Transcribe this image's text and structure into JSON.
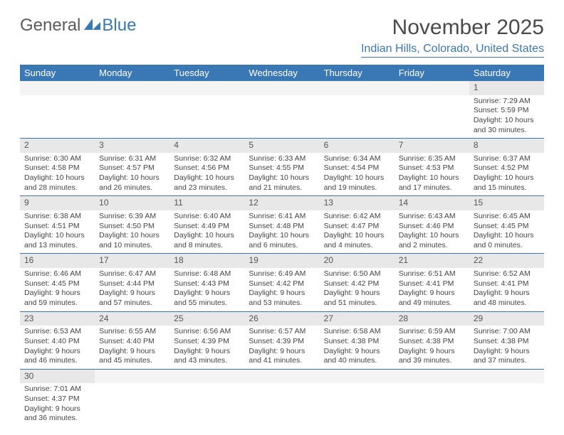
{
  "logo": {
    "text1": "General",
    "text2": "Blue"
  },
  "title": "November 2025",
  "location": "Indian Hills, Colorado, United States",
  "weekdays": [
    "Sunday",
    "Monday",
    "Tuesday",
    "Wednesday",
    "Thursday",
    "Friday",
    "Saturday"
  ],
  "colors": {
    "header_bg": "#3a78b5",
    "daynum_bg": "#e8e8e8"
  },
  "weeks": [
    [
      {
        "n": "",
        "sr": "",
        "ss": "",
        "dl": ""
      },
      {
        "n": "",
        "sr": "",
        "ss": "",
        "dl": ""
      },
      {
        "n": "",
        "sr": "",
        "ss": "",
        "dl": ""
      },
      {
        "n": "",
        "sr": "",
        "ss": "",
        "dl": ""
      },
      {
        "n": "",
        "sr": "",
        "ss": "",
        "dl": ""
      },
      {
        "n": "",
        "sr": "",
        "ss": "",
        "dl": ""
      },
      {
        "n": "1",
        "sr": "Sunrise: 7:29 AM",
        "ss": "Sunset: 5:59 PM",
        "dl": "Daylight: 10 hours and 30 minutes."
      }
    ],
    [
      {
        "n": "2",
        "sr": "Sunrise: 6:30 AM",
        "ss": "Sunset: 4:58 PM",
        "dl": "Daylight: 10 hours and 28 minutes."
      },
      {
        "n": "3",
        "sr": "Sunrise: 6:31 AM",
        "ss": "Sunset: 4:57 PM",
        "dl": "Daylight: 10 hours and 26 minutes."
      },
      {
        "n": "4",
        "sr": "Sunrise: 6:32 AM",
        "ss": "Sunset: 4:56 PM",
        "dl": "Daylight: 10 hours and 23 minutes."
      },
      {
        "n": "5",
        "sr": "Sunrise: 6:33 AM",
        "ss": "Sunset: 4:55 PM",
        "dl": "Daylight: 10 hours and 21 minutes."
      },
      {
        "n": "6",
        "sr": "Sunrise: 6:34 AM",
        "ss": "Sunset: 4:54 PM",
        "dl": "Daylight: 10 hours and 19 minutes."
      },
      {
        "n": "7",
        "sr": "Sunrise: 6:35 AM",
        "ss": "Sunset: 4:53 PM",
        "dl": "Daylight: 10 hours and 17 minutes."
      },
      {
        "n": "8",
        "sr": "Sunrise: 6:37 AM",
        "ss": "Sunset: 4:52 PM",
        "dl": "Daylight: 10 hours and 15 minutes."
      }
    ],
    [
      {
        "n": "9",
        "sr": "Sunrise: 6:38 AM",
        "ss": "Sunset: 4:51 PM",
        "dl": "Daylight: 10 hours and 13 minutes."
      },
      {
        "n": "10",
        "sr": "Sunrise: 6:39 AM",
        "ss": "Sunset: 4:50 PM",
        "dl": "Daylight: 10 hours and 10 minutes."
      },
      {
        "n": "11",
        "sr": "Sunrise: 6:40 AM",
        "ss": "Sunset: 4:49 PM",
        "dl": "Daylight: 10 hours and 8 minutes."
      },
      {
        "n": "12",
        "sr": "Sunrise: 6:41 AM",
        "ss": "Sunset: 4:48 PM",
        "dl": "Daylight: 10 hours and 6 minutes."
      },
      {
        "n": "13",
        "sr": "Sunrise: 6:42 AM",
        "ss": "Sunset: 4:47 PM",
        "dl": "Daylight: 10 hours and 4 minutes."
      },
      {
        "n": "14",
        "sr": "Sunrise: 6:43 AM",
        "ss": "Sunset: 4:46 PM",
        "dl": "Daylight: 10 hours and 2 minutes."
      },
      {
        "n": "15",
        "sr": "Sunrise: 6:45 AM",
        "ss": "Sunset: 4:45 PM",
        "dl": "Daylight: 10 hours and 0 minutes."
      }
    ],
    [
      {
        "n": "16",
        "sr": "Sunrise: 6:46 AM",
        "ss": "Sunset: 4:45 PM",
        "dl": "Daylight: 9 hours and 59 minutes."
      },
      {
        "n": "17",
        "sr": "Sunrise: 6:47 AM",
        "ss": "Sunset: 4:44 PM",
        "dl": "Daylight: 9 hours and 57 minutes."
      },
      {
        "n": "18",
        "sr": "Sunrise: 6:48 AM",
        "ss": "Sunset: 4:43 PM",
        "dl": "Daylight: 9 hours and 55 minutes."
      },
      {
        "n": "19",
        "sr": "Sunrise: 6:49 AM",
        "ss": "Sunset: 4:42 PM",
        "dl": "Daylight: 9 hours and 53 minutes."
      },
      {
        "n": "20",
        "sr": "Sunrise: 6:50 AM",
        "ss": "Sunset: 4:42 PM",
        "dl": "Daylight: 9 hours and 51 minutes."
      },
      {
        "n": "21",
        "sr": "Sunrise: 6:51 AM",
        "ss": "Sunset: 4:41 PM",
        "dl": "Daylight: 9 hours and 49 minutes."
      },
      {
        "n": "22",
        "sr": "Sunrise: 6:52 AM",
        "ss": "Sunset: 4:41 PM",
        "dl": "Daylight: 9 hours and 48 minutes."
      }
    ],
    [
      {
        "n": "23",
        "sr": "Sunrise: 6:53 AM",
        "ss": "Sunset: 4:40 PM",
        "dl": "Daylight: 9 hours and 46 minutes."
      },
      {
        "n": "24",
        "sr": "Sunrise: 6:55 AM",
        "ss": "Sunset: 4:40 PM",
        "dl": "Daylight: 9 hours and 45 minutes."
      },
      {
        "n": "25",
        "sr": "Sunrise: 6:56 AM",
        "ss": "Sunset: 4:39 PM",
        "dl": "Daylight: 9 hours and 43 minutes."
      },
      {
        "n": "26",
        "sr": "Sunrise: 6:57 AM",
        "ss": "Sunset: 4:39 PM",
        "dl": "Daylight: 9 hours and 41 minutes."
      },
      {
        "n": "27",
        "sr": "Sunrise: 6:58 AM",
        "ss": "Sunset: 4:38 PM",
        "dl": "Daylight: 9 hours and 40 minutes."
      },
      {
        "n": "28",
        "sr": "Sunrise: 6:59 AM",
        "ss": "Sunset: 4:38 PM",
        "dl": "Daylight: 9 hours and 39 minutes."
      },
      {
        "n": "29",
        "sr": "Sunrise: 7:00 AM",
        "ss": "Sunset: 4:38 PM",
        "dl": "Daylight: 9 hours and 37 minutes."
      }
    ],
    [
      {
        "n": "30",
        "sr": "Sunrise: 7:01 AM",
        "ss": "Sunset: 4:37 PM",
        "dl": "Daylight: 9 hours and 36 minutes."
      },
      {
        "n": "",
        "sr": "",
        "ss": "",
        "dl": ""
      },
      {
        "n": "",
        "sr": "",
        "ss": "",
        "dl": ""
      },
      {
        "n": "",
        "sr": "",
        "ss": "",
        "dl": ""
      },
      {
        "n": "",
        "sr": "",
        "ss": "",
        "dl": ""
      },
      {
        "n": "",
        "sr": "",
        "ss": "",
        "dl": ""
      },
      {
        "n": "",
        "sr": "",
        "ss": "",
        "dl": ""
      }
    ]
  ]
}
